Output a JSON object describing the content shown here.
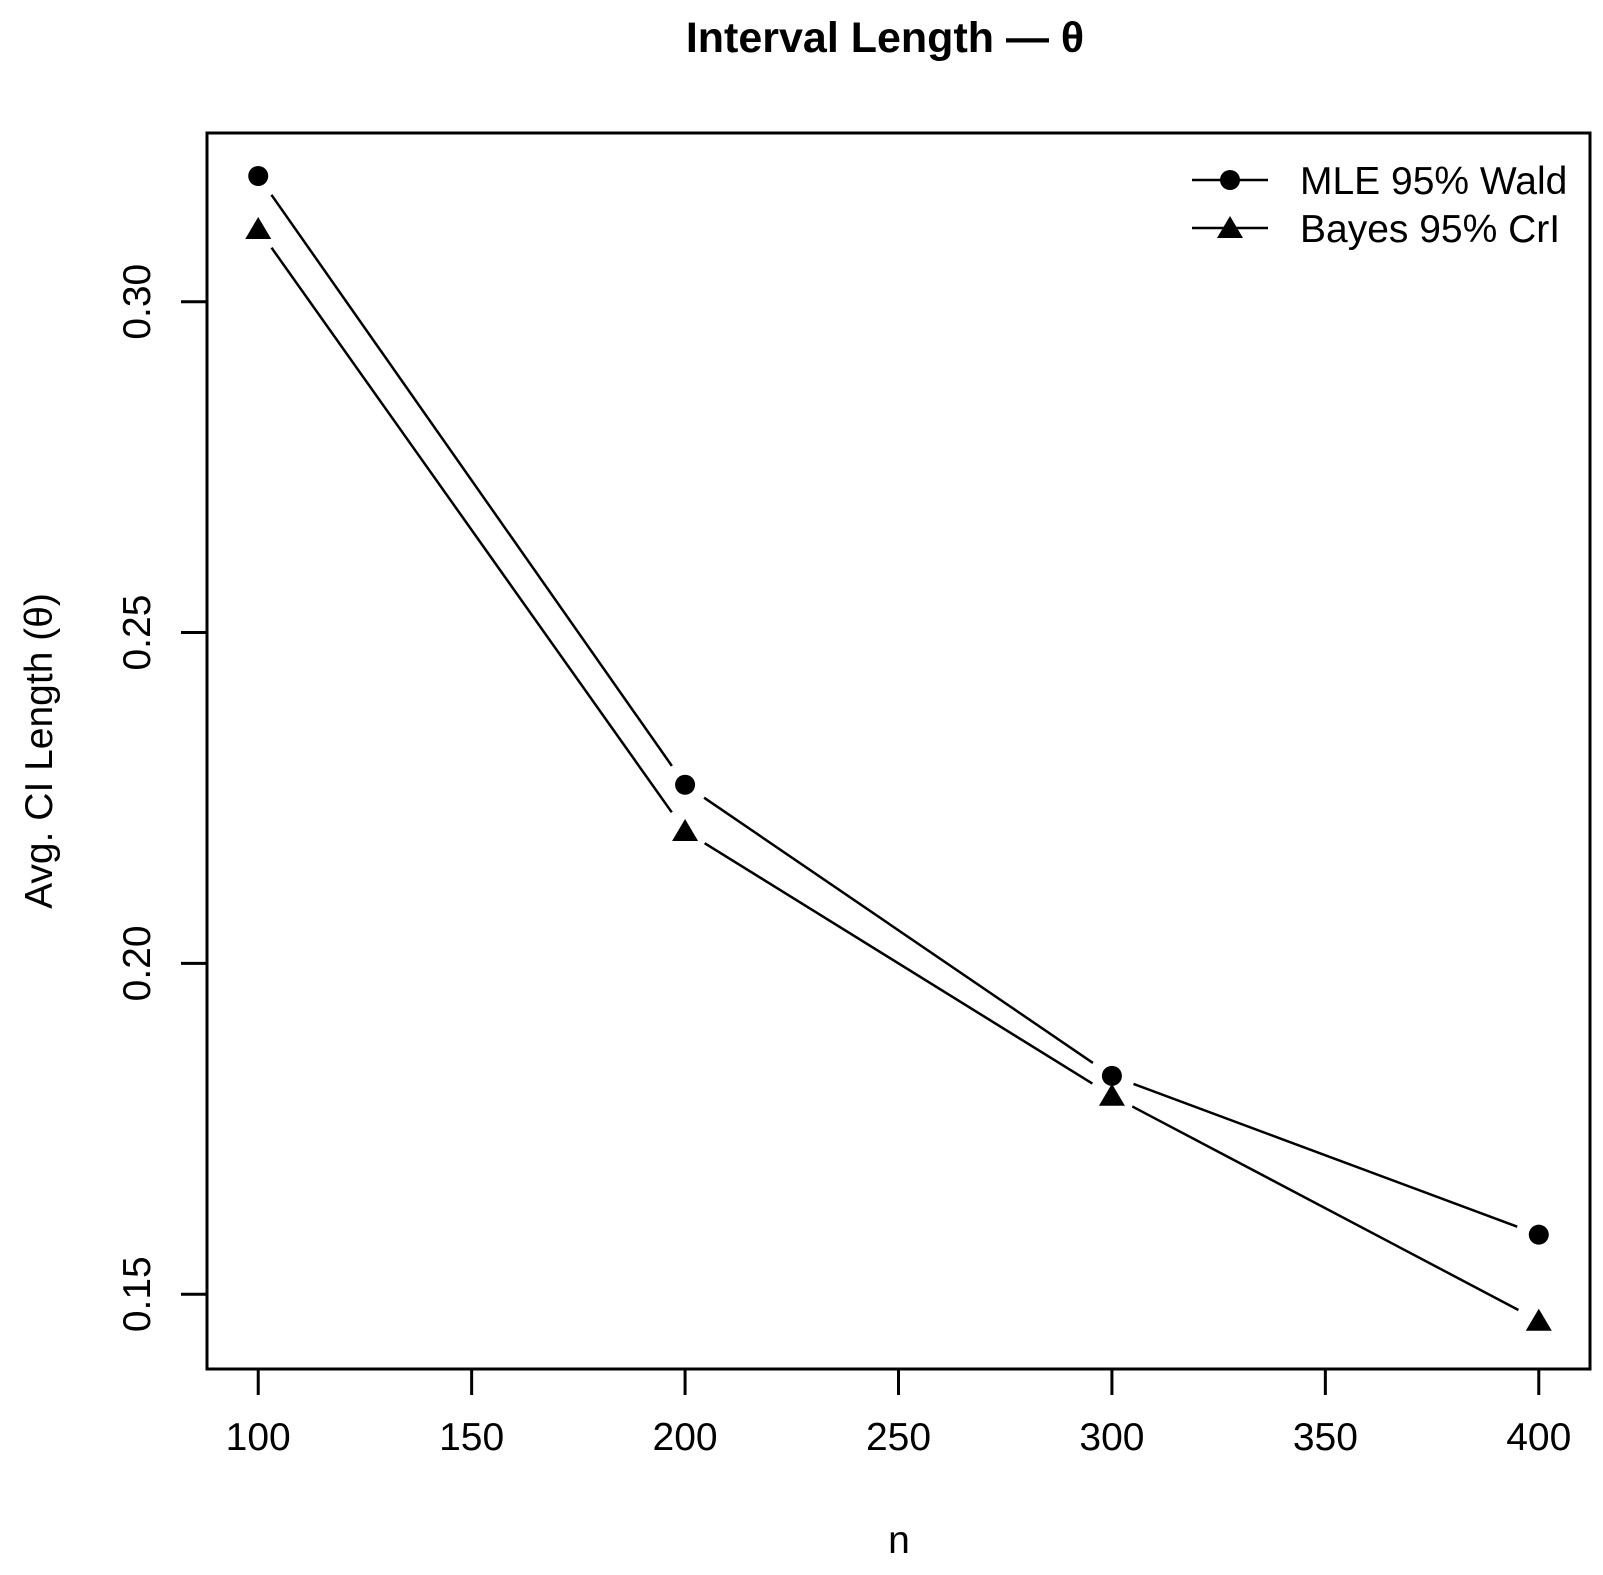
{
  "figure": {
    "background": "#ffffff",
    "foreground": "#000000"
  },
  "chart_data": {
    "type": "line",
    "title": "Interval Length — θ",
    "xlabel": "n",
    "ylabel": "Avg. CI Length (θ)",
    "x": [
      100,
      200,
      300,
      400
    ],
    "series": [
      {
        "name": "MLE 95% Wald",
        "marker": "circle",
        "values": [
          0.319,
          0.227,
          0.183,
          0.159
        ]
      },
      {
        "name": "Bayes 95% CrI",
        "marker": "triangle",
        "values": [
          0.311,
          0.22,
          0.18,
          0.146
        ]
      }
    ],
    "x_ticks": [
      100,
      150,
      200,
      250,
      300,
      350,
      400
    ],
    "y_ticks": [
      {
        "value": 0.15,
        "label": "0.15"
      },
      {
        "value": 0.2,
        "label": "0.20"
      },
      {
        "value": 0.25,
        "label": "0.25"
      },
      {
        "value": 0.3,
        "label": "0.30"
      }
    ],
    "xlim": [
      88,
      412
    ],
    "ylim": [
      0.1387,
      0.3255
    ],
    "grid": false,
    "line_style": "points-with-segments",
    "legend": {
      "position": "top-right",
      "entries": [
        "MLE 95% Wald",
        "Bayes 95% CrI"
      ]
    },
    "color": "#000000"
  }
}
